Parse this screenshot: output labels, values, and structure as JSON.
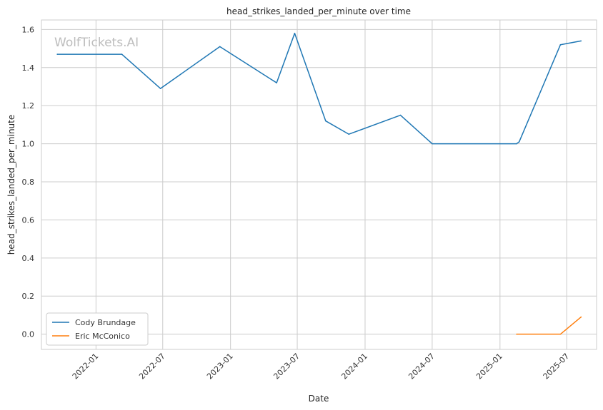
{
  "chart_data": {
    "type": "line",
    "title": "head_strikes_landed_per_minute over time",
    "xlabel": "Date",
    "ylabel": "head_strikes_landed_per_minute",
    "watermark": "WolfTickets.AI",
    "x_type": "date",
    "xlim": [
      "2021-08-06",
      "2025-09-20"
    ],
    "ylim": [
      -0.08,
      1.65
    ],
    "x_ticks": [
      "2022-01-01",
      "2022-07-01",
      "2023-01-01",
      "2023-07-01",
      "2024-01-01",
      "2024-07-01",
      "2025-01-01",
      "2025-07-01"
    ],
    "x_tick_labels": [
      "2022-01",
      "2022-07",
      "2023-01",
      "2023-07",
      "2024-01",
      "2024-07",
      "2025-01",
      "2025-07"
    ],
    "y_ticks": [
      0.0,
      0.2,
      0.4,
      0.6,
      0.8,
      1.0,
      1.2,
      1.4,
      1.6
    ],
    "y_tick_labels": [
      "0.0",
      "0.2",
      "0.4",
      "0.6",
      "0.8",
      "1.0",
      "1.2",
      "1.4",
      "1.6"
    ],
    "grid": true,
    "legend_position": "lower-left",
    "series": [
      {
        "name": "Cody Brundage",
        "color": "#1f77b4",
        "points": [
          {
            "x": "2021-09-18",
            "y": 1.47
          },
          {
            "x": "2022-03-12",
            "y": 1.47
          },
          {
            "x": "2022-06-25",
            "y": 1.29
          },
          {
            "x": "2022-12-03",
            "y": 1.51
          },
          {
            "x": "2023-05-06",
            "y": 1.32
          },
          {
            "x": "2023-06-24",
            "y": 1.58
          },
          {
            "x": "2023-09-16",
            "y": 1.12
          },
          {
            "x": "2023-11-18",
            "y": 1.05
          },
          {
            "x": "2024-04-06",
            "y": 1.15
          },
          {
            "x": "2024-07-01",
            "y": 1.0
          },
          {
            "x": "2025-02-15",
            "y": 1.0
          },
          {
            "x": "2025-02-22",
            "y": 1.01
          },
          {
            "x": "2025-06-14",
            "y": 1.52
          },
          {
            "x": "2025-08-09",
            "y": 1.54
          }
        ]
      },
      {
        "name": "Eric McConico",
        "color": "#ff7f0e",
        "points": [
          {
            "x": "2025-02-15",
            "y": 0.0
          },
          {
            "x": "2025-06-14",
            "y": 0.0
          },
          {
            "x": "2025-08-09",
            "y": 0.09
          }
        ]
      }
    ]
  }
}
